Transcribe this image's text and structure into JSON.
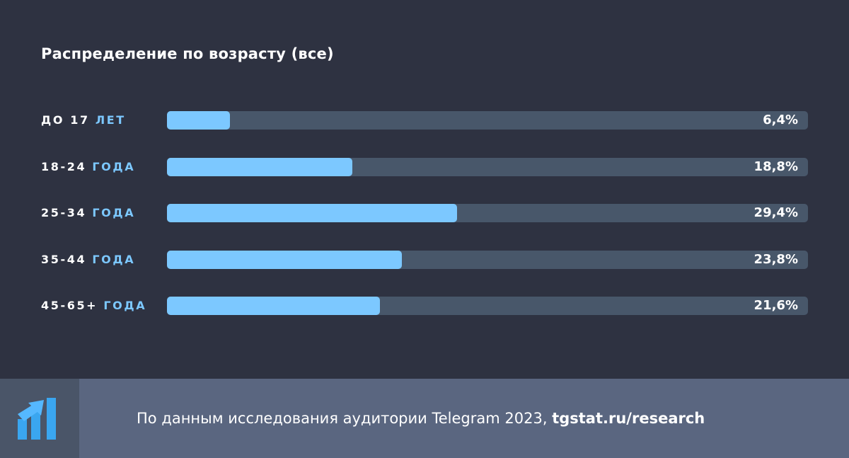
{
  "chart_data": {
    "type": "bar",
    "orientation": "horizontal",
    "title": "Распределение по возрасту (все)",
    "categories": [
      {
        "num": "ДО 17",
        "unit": "ЛЕТ"
      },
      {
        "num": "18-24",
        "unit": "ГОДА"
      },
      {
        "num": "25-34",
        "unit": "ГОДА"
      },
      {
        "num": "35-44",
        "unit": "ГОДА"
      },
      {
        "num": "45-65+",
        "unit": "ГОДА"
      }
    ],
    "values": [
      6.4,
      18.8,
      29.4,
      23.8,
      21.6
    ],
    "value_labels": [
      "6,4%",
      "18,8%",
      "29,4%",
      "23,8%",
      "21,6%"
    ],
    "xlim": [
      0,
      65
    ],
    "grid": false
  },
  "footer": {
    "text": "По данным исследования аудитории Telegram 2023,",
    "link": "tgstat.ru/research",
    "logo_icon": "tgstat-logo-icon"
  },
  "colors": {
    "background": "#2e3241",
    "bar_fill": "#7cc8ff",
    "bar_track": "#48576a",
    "footer_bg": "#5a6680",
    "logo_bg": "#4a5568",
    "accent": "#7cc8ff"
  }
}
